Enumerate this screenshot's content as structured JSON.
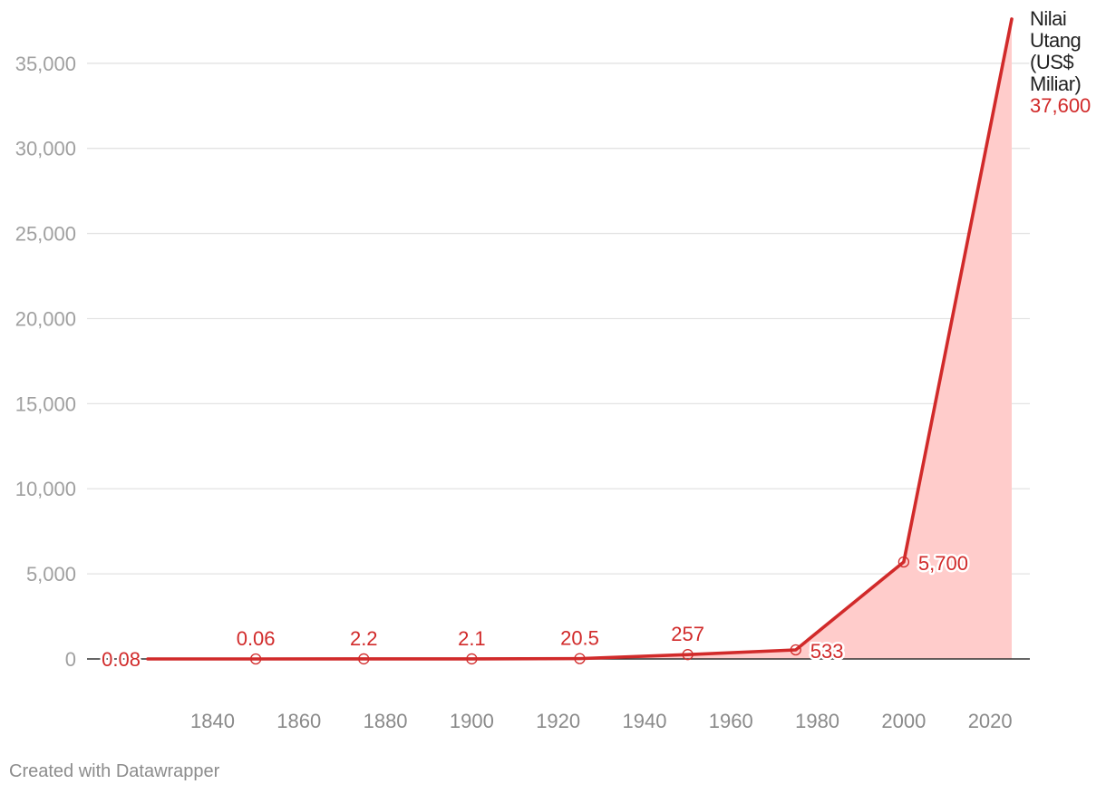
{
  "chart_data": {
    "type": "area",
    "series": [
      {
        "name": "Nilai Utang (US$ Miliar)",
        "color": "#d12a2a",
        "fill_color": "#ffcccb",
        "points": [
          {
            "x": 1825,
            "y": 0.08,
            "label": "0.08"
          },
          {
            "x": 1850,
            "y": 0.06,
            "label": "0.06"
          },
          {
            "x": 1875,
            "y": 2.2,
            "label": "2.2"
          },
          {
            "x": 1900,
            "y": 2.1,
            "label": "2.1"
          },
          {
            "x": 1925,
            "y": 20.5,
            "label": "20.5"
          },
          {
            "x": 1950,
            "y": 257,
            "label": "257"
          },
          {
            "x": 1975,
            "y": 533,
            "label": "533"
          },
          {
            "x": 2000,
            "y": 5700,
            "label": "5,700"
          },
          {
            "x": 2025,
            "y": 37600,
            "label": "37,600"
          }
        ]
      }
    ],
    "series_name_lines": [
      "Nilai",
      "Utang",
      "(US$",
      "Miliar)"
    ],
    "x_ticks": [
      "1840",
      "1860",
      "1880",
      "1900",
      "1920",
      "1940",
      "1960",
      "1980",
      "2000",
      "2020"
    ],
    "y_ticks": [
      "0",
      "5,000",
      "10,000",
      "15,000",
      "20,000",
      "25,000",
      "30,000",
      "35,000"
    ],
    "ylim": [
      0,
      37600
    ],
    "grid": true,
    "legend": "none"
  },
  "footer": {
    "credit": "Created with Datawrapper"
  }
}
